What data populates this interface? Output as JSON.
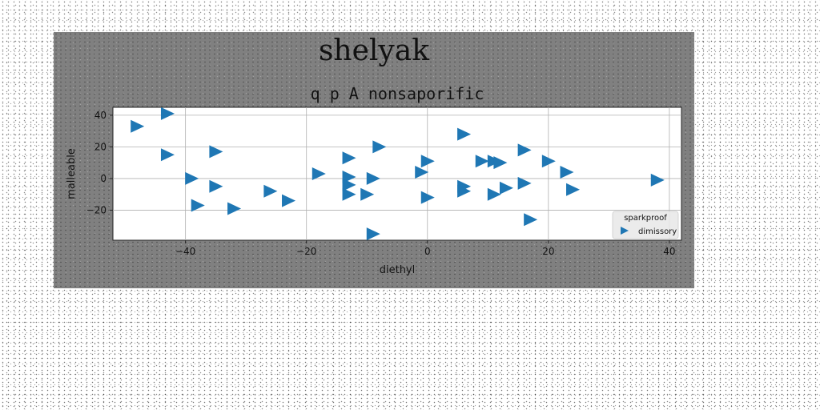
{
  "chart_data": {
    "type": "scatter",
    "suptitle": "shelyak",
    "title": "q p A nonsaporific",
    "xlabel": "diethyl",
    "ylabel": "malleable",
    "xlim": [
      -52,
      42
    ],
    "ylim": [
      -39,
      45
    ],
    "xticks": [
      -40,
      -20,
      0,
      20,
      40
    ],
    "yticks": [
      -20,
      0,
      20,
      40
    ],
    "grid": true,
    "legend": {
      "title": "sparkproof",
      "placement": "lower right",
      "entries": [
        "dimissory"
      ]
    },
    "colors": {
      "series": "#1f77b4",
      "plot_bg": "#ffffff",
      "figure_bg": "#808080"
    },
    "series": [
      {
        "name": "dimissory",
        "marker": "triangle-right",
        "points": [
          [
            -48,
            33
          ],
          [
            -43,
            41
          ],
          [
            -43,
            15
          ],
          [
            -35,
            17
          ],
          [
            -39,
            0
          ],
          [
            -35,
            -5
          ],
          [
            -38,
            -17
          ],
          [
            -32,
            -19
          ],
          [
            -26,
            -8
          ],
          [
            -23,
            -14
          ],
          [
            -18,
            3
          ],
          [
            -13,
            1
          ],
          [
            -13,
            13
          ],
          [
            -13,
            -4
          ],
          [
            -13,
            -10
          ],
          [
            -10,
            -10
          ],
          [
            -9,
            0
          ],
          [
            -8,
            20
          ],
          [
            -9,
            -35
          ],
          [
            -1,
            4
          ],
          [
            0,
            11
          ],
          [
            0,
            -12
          ],
          [
            6,
            28
          ],
          [
            6,
            -5
          ],
          [
            6,
            -8
          ],
          [
            9,
            11
          ],
          [
            11,
            11
          ],
          [
            12,
            10
          ],
          [
            11,
            -10
          ],
          [
            13,
            -6
          ],
          [
            16,
            -3
          ],
          [
            16,
            18
          ],
          [
            20,
            11
          ],
          [
            17,
            -26
          ],
          [
            23,
            4
          ],
          [
            24,
            -7
          ],
          [
            38,
            -1
          ]
        ]
      }
    ]
  }
}
